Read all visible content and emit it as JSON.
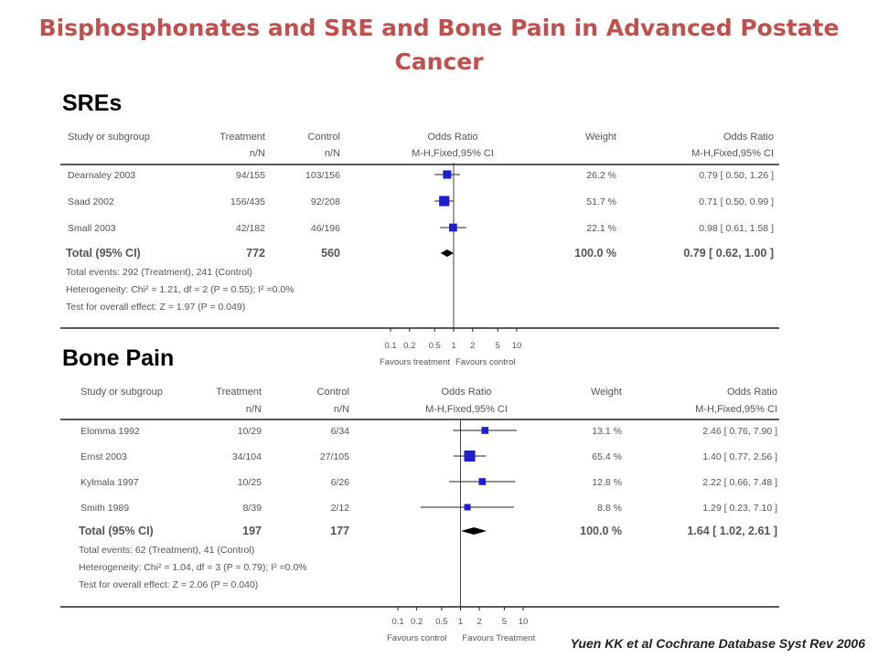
{
  "page": {
    "title": "Bisphosphonates and SRE and Bone Pain in Advanced Postate Cancer",
    "citation": "Yuen KK et al Cochrane Database Syst Rev 2006"
  },
  "colors": {
    "title": "#c0504d",
    "marker": "#1f1fd1",
    "text": "#555555"
  },
  "chart_data": [
    {
      "type": "forest",
      "panel_label": "SREs",
      "headers": {
        "study": "Study or subgroup",
        "treatment": "Treatment",
        "treatment_sub": "n/N",
        "control": "Control",
        "control_sub": "n/N",
        "or": "Odds Ratio",
        "or_sub": "M-H,Fixed,95% CI",
        "weight": "Weight",
        "or_right": "Odds Ratio",
        "or_right_sub": "M-H,Fixed,95% CI"
      },
      "studies": [
        {
          "name": "Dearnaley 2003",
          "treatment": "94/155",
          "control": "103/156",
          "or": 0.79,
          "lo": 0.5,
          "hi": 1.26,
          "weight": "26.2 %",
          "ci_text": "0.79 [ 0.50, 1.26 ]"
        },
        {
          "name": "Saad 2002",
          "treatment": "156/435",
          "control": "92/208",
          "or": 0.71,
          "lo": 0.5,
          "hi": 0.99,
          "weight": "51.7 %",
          "ci_text": "0.71 [ 0.50, 0.99 ]"
        },
        {
          "name": "Small 2003",
          "treatment": "42/182",
          "control": "46/196",
          "or": 0.98,
          "lo": 0.61,
          "hi": 1.58,
          "weight": "22.1 %",
          "ci_text": "0.98 [ 0.61, 1.58 ]"
        }
      ],
      "total": {
        "label": "Total (95% CI)",
        "treatment": "772",
        "control": "560",
        "or": 0.79,
        "lo": 0.62,
        "hi": 1.0,
        "weight": "100.0 %",
        "ci_text": "0.79 [ 0.62, 1.00 ]"
      },
      "footnotes": [
        "Total events: 292 (Treatment), 241 (Control)",
        "Heterogeneity: Chi² = 1.21, df = 2 (P = 0.55); I² =0.0%",
        "Test for overall effect: Z = 1.97 (P = 0.049)"
      ],
      "x_ticks": [
        0.1,
        0.2,
        0.5,
        1,
        2,
        5,
        10
      ],
      "x_tick_labels": [
        "0.1",
        "0.2",
        "0.5",
        "1",
        "2",
        "5",
        "10"
      ],
      "xlim": [
        0.1,
        10
      ],
      "scale": "log",
      "favours_left": "Favours treatment",
      "favours_right": "Favours control"
    },
    {
      "type": "forest",
      "panel_label": "Bone Pain",
      "headers": {
        "study": "Study or subgroup",
        "treatment": "Treatment",
        "treatment_sub": "n/N",
        "control": "Control",
        "control_sub": "n/N",
        "or": "Odds Ratio",
        "or_sub": "M-H,Fixed,95% CI",
        "weight": "Weight",
        "or_right": "Odds Ratio",
        "or_right_sub": "M-H,Fixed,95% CI"
      },
      "studies": [
        {
          "name": "Elomma 1992",
          "treatment": "10/29",
          "control": "6/34",
          "or": 2.46,
          "lo": 0.76,
          "hi": 7.9,
          "weight": "13.1 %",
          "ci_text": "2.46 [ 0.76, 7.90 ]"
        },
        {
          "name": "Ernst 2003",
          "treatment": "34/104",
          "control": "27/105",
          "or": 1.4,
          "lo": 0.77,
          "hi": 2.56,
          "weight": "65.4 %",
          "ci_text": "1.40 [ 0.77, 2.56 ]"
        },
        {
          "name": "Kylmala 1997",
          "treatment": "10/25",
          "control": "6/26",
          "or": 2.22,
          "lo": 0.66,
          "hi": 7.48,
          "weight": "12.8 %",
          "ci_text": "2.22 [ 0.66, 7.48 ]"
        },
        {
          "name": "Smith 1989",
          "treatment": "8/39",
          "control": "2/12",
          "or": 1.29,
          "lo": 0.23,
          "hi": 7.1,
          "weight": "8.8 %",
          "ci_text": "1.29 [ 0.23, 7.10 ]"
        }
      ],
      "total": {
        "label": "Total (95% CI)",
        "treatment": "197",
        "control": "177",
        "or": 1.64,
        "lo": 1.02,
        "hi": 2.61,
        "weight": "100.0 %",
        "ci_text": "1.64 [ 1.02, 2.61 ]"
      },
      "footnotes": [
        "Total events: 62 (Treatment), 41 (Control)",
        "Heterogeneity: Chi² = 1.04, df = 3 (P = 0.79); I² =0.0%",
        "Test for overall effect: Z = 2.06 (P = 0.040)"
      ],
      "x_ticks": [
        0.1,
        0.2,
        0.5,
        1,
        2,
        5,
        10
      ],
      "x_tick_labels": [
        "0.1",
        "0.2",
        "0.5",
        "1",
        "2",
        "5",
        "10"
      ],
      "xlim": [
        0.1,
        10
      ],
      "scale": "log",
      "favours_left": "Favours control",
      "favours_right": "Favours Treatment"
    }
  ]
}
